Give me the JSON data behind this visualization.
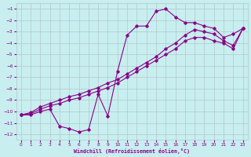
{
  "xlabel": "Windchill (Refroidissement éolien,°C)",
  "bg_color": "#c8eef0",
  "line_color": "#880088",
  "grid_color": "#b0c8c8",
  "xlim": [
    -0.5,
    23.5
  ],
  "ylim": [
    -12.5,
    -0.5
  ],
  "xticks": [
    0,
    1,
    2,
    3,
    4,
    5,
    6,
    7,
    8,
    9,
    10,
    11,
    12,
    13,
    14,
    15,
    16,
    17,
    18,
    19,
    20,
    21,
    22,
    23
  ],
  "yticks": [
    -1,
    -2,
    -3,
    -4,
    -5,
    -6,
    -7,
    -8,
    -9,
    -10,
    -11,
    -12
  ],
  "line1_x": [
    0,
    1,
    2,
    3,
    4,
    5,
    6,
    7,
    8,
    9,
    10,
    11,
    12,
    13,
    14,
    15,
    16,
    17,
    18,
    19,
    20,
    21,
    22,
    23
  ],
  "line1_y": [
    -10.3,
    -10.3,
    -10.0,
    -9.8,
    -11.3,
    -11.5,
    -11.8,
    -11.6,
    -8.5,
    -10.4,
    -6.5,
    -3.3,
    -2.5,
    -2.5,
    -1.2,
    -1.0,
    -1.7,
    -2.2,
    -2.2,
    -2.5,
    -2.7,
    -3.5,
    -3.2,
    -2.7
  ],
  "line2_x": [
    0,
    1,
    2,
    3,
    4,
    5,
    6,
    7,
    8,
    9,
    10,
    11,
    12,
    13,
    14,
    15,
    16,
    17,
    18,
    19,
    20,
    21,
    22,
    23
  ],
  "line2_y": [
    -10.3,
    -10.2,
    -9.8,
    -9.5,
    -9.3,
    -9.0,
    -8.8,
    -8.5,
    -8.2,
    -7.9,
    -7.5,
    -7.0,
    -6.5,
    -6.0,
    -5.5,
    -5.0,
    -4.5,
    -3.8,
    -3.5,
    -3.5,
    -3.8,
    -4.0,
    -4.5,
    -2.7
  ],
  "line3_x": [
    0,
    1,
    2,
    3,
    4,
    5,
    6,
    7,
    8,
    9,
    10,
    11,
    12,
    13,
    14,
    15,
    16,
    17,
    18,
    19,
    20,
    21,
    22,
    23
  ],
  "line3_y": [
    -10.3,
    -10.1,
    -9.6,
    -9.3,
    -9.0,
    -8.7,
    -8.5,
    -8.2,
    -7.9,
    -7.5,
    -7.2,
    -6.7,
    -6.2,
    -5.7,
    -5.2,
    -4.5,
    -4.0,
    -3.3,
    -2.8,
    -3.0,
    -3.2,
    -3.8,
    -4.2,
    -2.7
  ]
}
